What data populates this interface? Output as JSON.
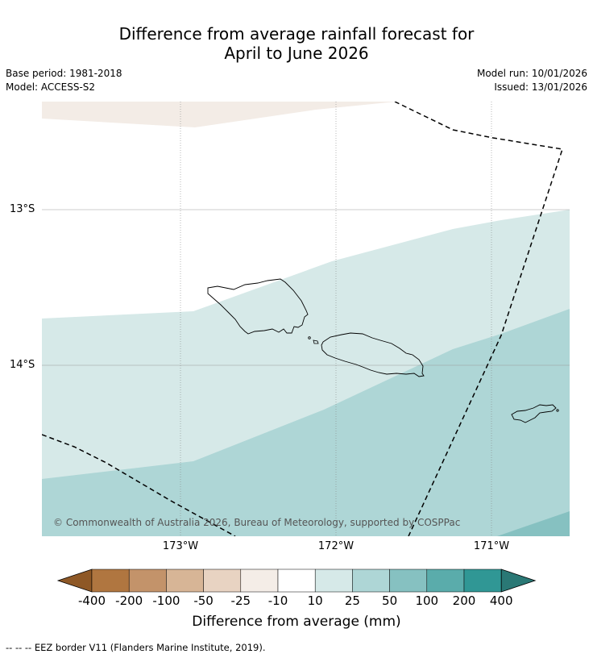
{
  "title": {
    "line1": "Difference from average rainfall forecast for",
    "line2": "April to June 2026"
  },
  "meta": {
    "base_period": "Base period: 1981-2018",
    "model": "Model: ACCESS-S2",
    "model_run": "Model run: 10/01/2026",
    "issued": "Issued: 13/01/2026"
  },
  "map": {
    "lat_labels": [
      "13°S",
      "14°S"
    ],
    "lon_labels": [
      "173°W",
      "172°W",
      "171°W"
    ],
    "copyright": "© Commonwealth of Australia 2026, Bureau of Meteorology, supported by COSPPac",
    "region_colors": {
      "brown_light": "#f3ece6",
      "teal_10_25": "#d6e9e8",
      "teal_25_50": "#aed6d6",
      "teal_50_100": "#86c1c1"
    }
  },
  "colorbar": {
    "title": "Difference from average (mm)",
    "tick_labels": [
      "-400",
      "-200",
      "-100",
      "-50",
      "-25",
      "-10",
      "10",
      "25",
      "50",
      "100",
      "200",
      "400"
    ],
    "colors": [
      "#8e5826",
      "#b07640",
      "#c3936a",
      "#d7b596",
      "#e8d3c2",
      "#f4ede7",
      "#ffffff",
      "#d6e9e8",
      "#aed6d6",
      "#86c1c1",
      "#5aacab",
      "#309795",
      "#2a7875"
    ]
  },
  "footnote": "--  --  -- EEZ border V11 (Flanders Marine Institute, 2019)."
}
